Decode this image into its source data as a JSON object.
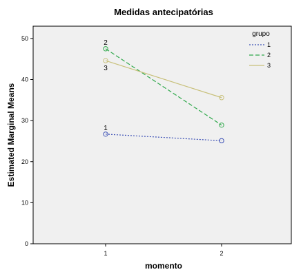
{
  "chart_data": {
    "type": "line",
    "title": "Medidas antecipatórias",
    "xlabel": "momento",
    "ylabel": "Estimated Marginal Means",
    "categories": [
      "1",
      "2"
    ],
    "ylim": [
      0,
      53
    ],
    "yticks": [
      0,
      10,
      20,
      30,
      40,
      50
    ],
    "grid": false,
    "legend": {
      "title": "grupo",
      "placement": "top-right"
    },
    "series": [
      {
        "name": "1",
        "values": [
          26.7,
          25.1
        ],
        "color": "#3b4fb5",
        "dash": "dotted",
        "label_at_start": "1",
        "label_position": "above"
      },
      {
        "name": "2",
        "values": [
          47.5,
          28.9
        ],
        "color": "#2ea84a",
        "dash": "dashed",
        "label_at_start": "2",
        "label_position": "above"
      },
      {
        "name": "3",
        "values": [
          44.6,
          35.6
        ],
        "color": "#c8c07a",
        "dash": "solid",
        "label_at_start": "3",
        "label_position": "below"
      }
    ]
  }
}
